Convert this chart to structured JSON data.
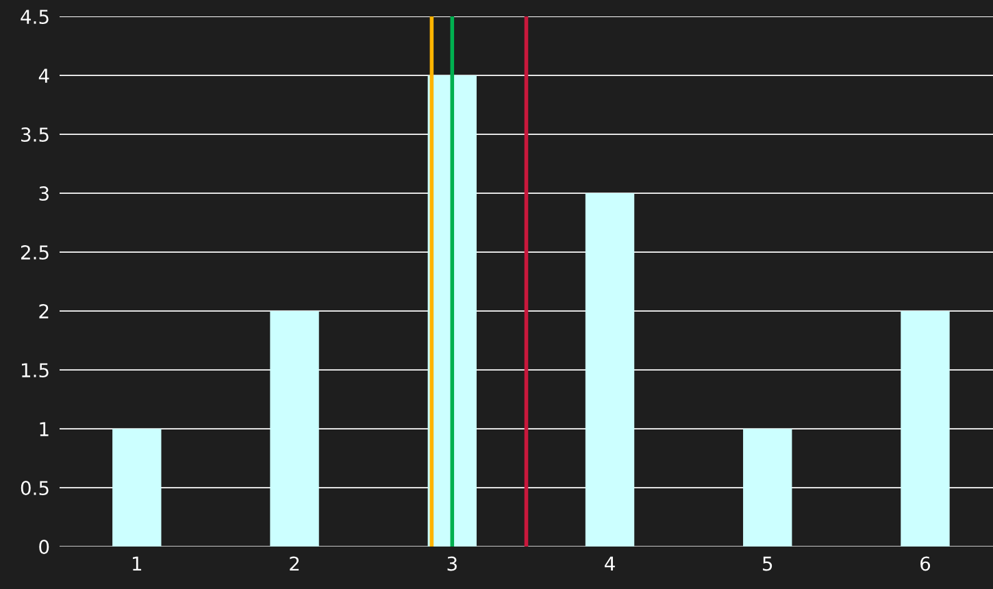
{
  "chart_data": {
    "type": "bar",
    "x": [
      1,
      2,
      3,
      4,
      5,
      6
    ],
    "values": [
      1,
      2,
      4,
      3,
      1,
      2
    ],
    "color": "#ccffff",
    "xlim": [
      0.51,
      6.43
    ],
    "xticks": [
      1,
      2,
      3,
      4,
      5,
      6
    ],
    "ylim": [
      0,
      4.5
    ],
    "yticks": [
      0,
      0.5,
      1,
      1.5,
      2,
      2.5,
      3,
      3.5,
      4,
      4.5
    ],
    "grid": "y",
    "legend": false,
    "ref_lines": [
      {
        "axis": "x",
        "value": 2.87,
        "color": "#ffb400"
      },
      {
        "axis": "x",
        "value": 3.0,
        "color": "#00b050"
      },
      {
        "axis": "x",
        "value": 3.47,
        "color": "#c8183c"
      }
    ]
  }
}
